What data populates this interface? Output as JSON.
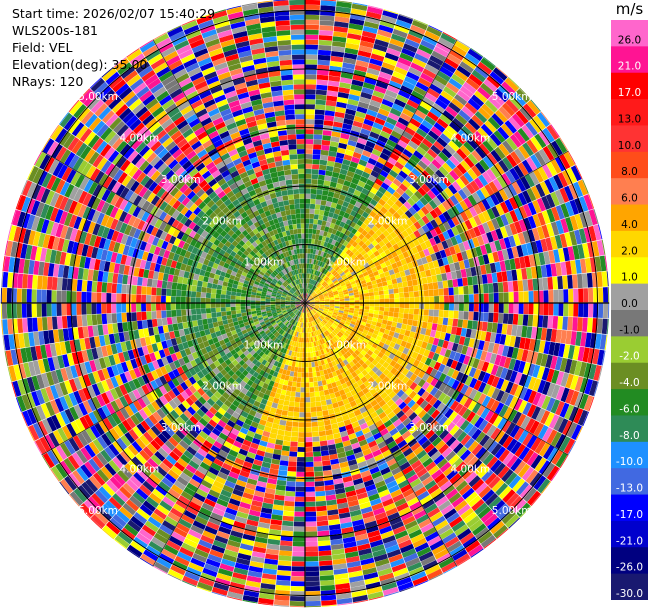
{
  "header": {
    "start_time": "Start time: 2026/02/07 15:40:29",
    "instrument": "WLS200s-181",
    "field": "Field: VEL",
    "elevation": "Elevation(deg): 35.00",
    "nrays": "NRays: 120"
  },
  "colorbar": {
    "unit": "m/s",
    "labels": [
      "26.0",
      "21.0",
      "17.0",
      "13.0",
      "10.0",
      "8.0",
      "6.0",
      "4.0",
      "2.0",
      "1.0",
      "0.0",
      "-1.0",
      "-2.0",
      "-4.0",
      "-6.0",
      "-8.0",
      "-10.0",
      "-13.0",
      "-17.0",
      "-21.0",
      "-26.0",
      "-30.0"
    ],
    "colors": [
      "#ff66cc",
      "#ff1493",
      "#ff0000",
      "#ff1a1a",
      "#ff3333",
      "#ff4d1a",
      "#ff7f50",
      "#ffa500",
      "#ffd700",
      "#ffff00",
      "#a0a0a0",
      "#787878",
      "#9acd32",
      "#6b8e23",
      "#228b22",
      "#2e8b57",
      "#1e90ff",
      "#4169e1",
      "#0000ff",
      "#0000cd",
      "#000080",
      "#191970"
    ]
  },
  "chart_data": {
    "type": "heatmap",
    "projection": "polar PPI scan",
    "nrays": 120,
    "elevation_deg": 35.0,
    "range_rings_km": [
      "1.00km",
      "2.00km",
      "3.00km",
      "4.00km",
      "5.00km"
    ],
    "ring_values_km": [
      1,
      2,
      3,
      4,
      5
    ],
    "max_range_km": 5.2,
    "velocity_range_ms": [
      -30,
      26
    ],
    "pattern": {
      "inner_radius_km": 1.0,
      "clean_radius_km": 2.2,
      "noise_radius_km": 2.5,
      "positive_sector_deg": [
        35,
        200
      ],
      "negative_sector_deg": [
        200,
        395
      ],
      "positive_core_ms": [
        1,
        6
      ],
      "negative_core_ms": [
        -8,
        -1
      ],
      "far_field": "noise"
    }
  }
}
